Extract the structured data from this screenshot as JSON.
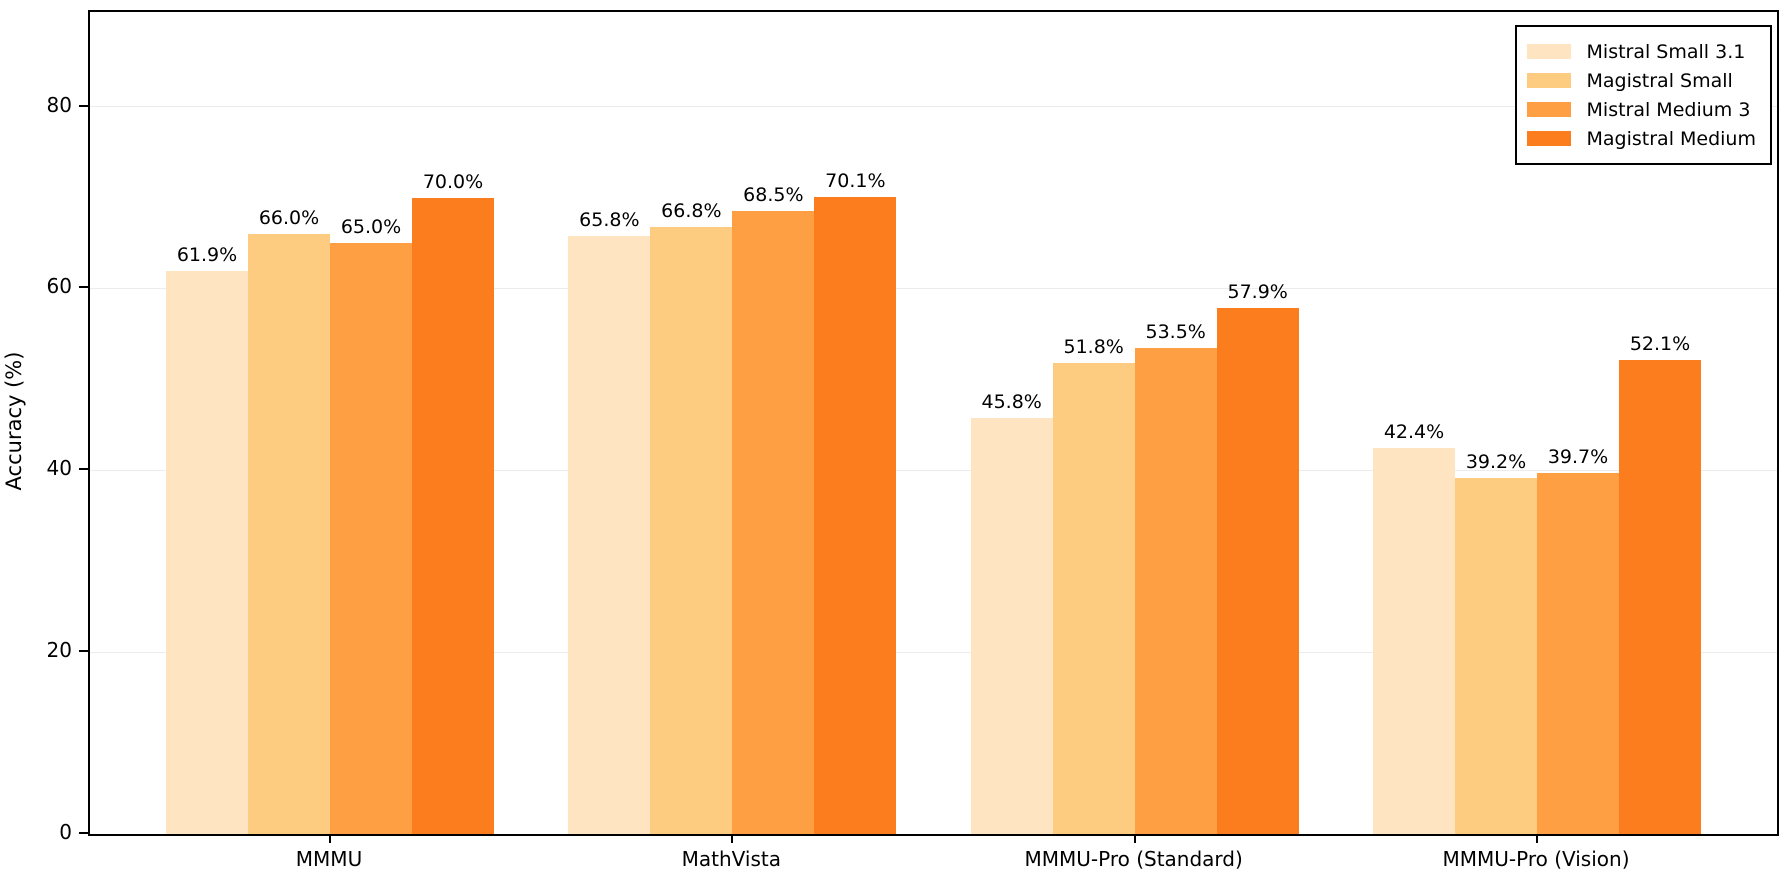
{
  "chart_data": {
    "type": "bar",
    "title": "",
    "xlabel": "",
    "ylabel": "Accuracy (%)",
    "categories": [
      "MMMU",
      "MathVista",
      "MMMU-Pro (Standard)",
      "MMMU-Pro (Vision)"
    ],
    "series": [
      {
        "name": "Mistral Small 3.1",
        "color": "#ffe4c2",
        "values": [
          61.9,
          65.8,
          45.8,
          42.4
        ]
      },
      {
        "name": "Magistral Small",
        "color": "#fecc80",
        "values": [
          66.0,
          66.8,
          51.8,
          39.2
        ]
      },
      {
        "name": "Mistral Medium 3",
        "color": "#fd9f42",
        "values": [
          65.0,
          68.5,
          53.5,
          39.7
        ]
      },
      {
        "name": "Magistral Medium",
        "color": "#fb7d1e",
        "values": [
          70.0,
          70.1,
          57.9,
          52.1
        ]
      }
    ],
    "value_labels": [
      [
        "61.9%",
        "65.8%",
        "45.8%",
        "42.4%"
      ],
      [
        "66.0%",
        "66.8%",
        "51.8%",
        "39.2%"
      ],
      [
        "65.0%",
        "68.5%",
        "53.5%",
        "39.7%"
      ],
      [
        "70.0%",
        "70.1%",
        "57.9%",
        "52.1%"
      ]
    ],
    "ylim": [
      0,
      90.4
    ],
    "yticks": [
      0,
      20,
      40,
      60,
      80
    ],
    "grid": true,
    "grid_color": "#ececec",
    "spine_color": "#000000",
    "legend_position": "upper right"
  }
}
